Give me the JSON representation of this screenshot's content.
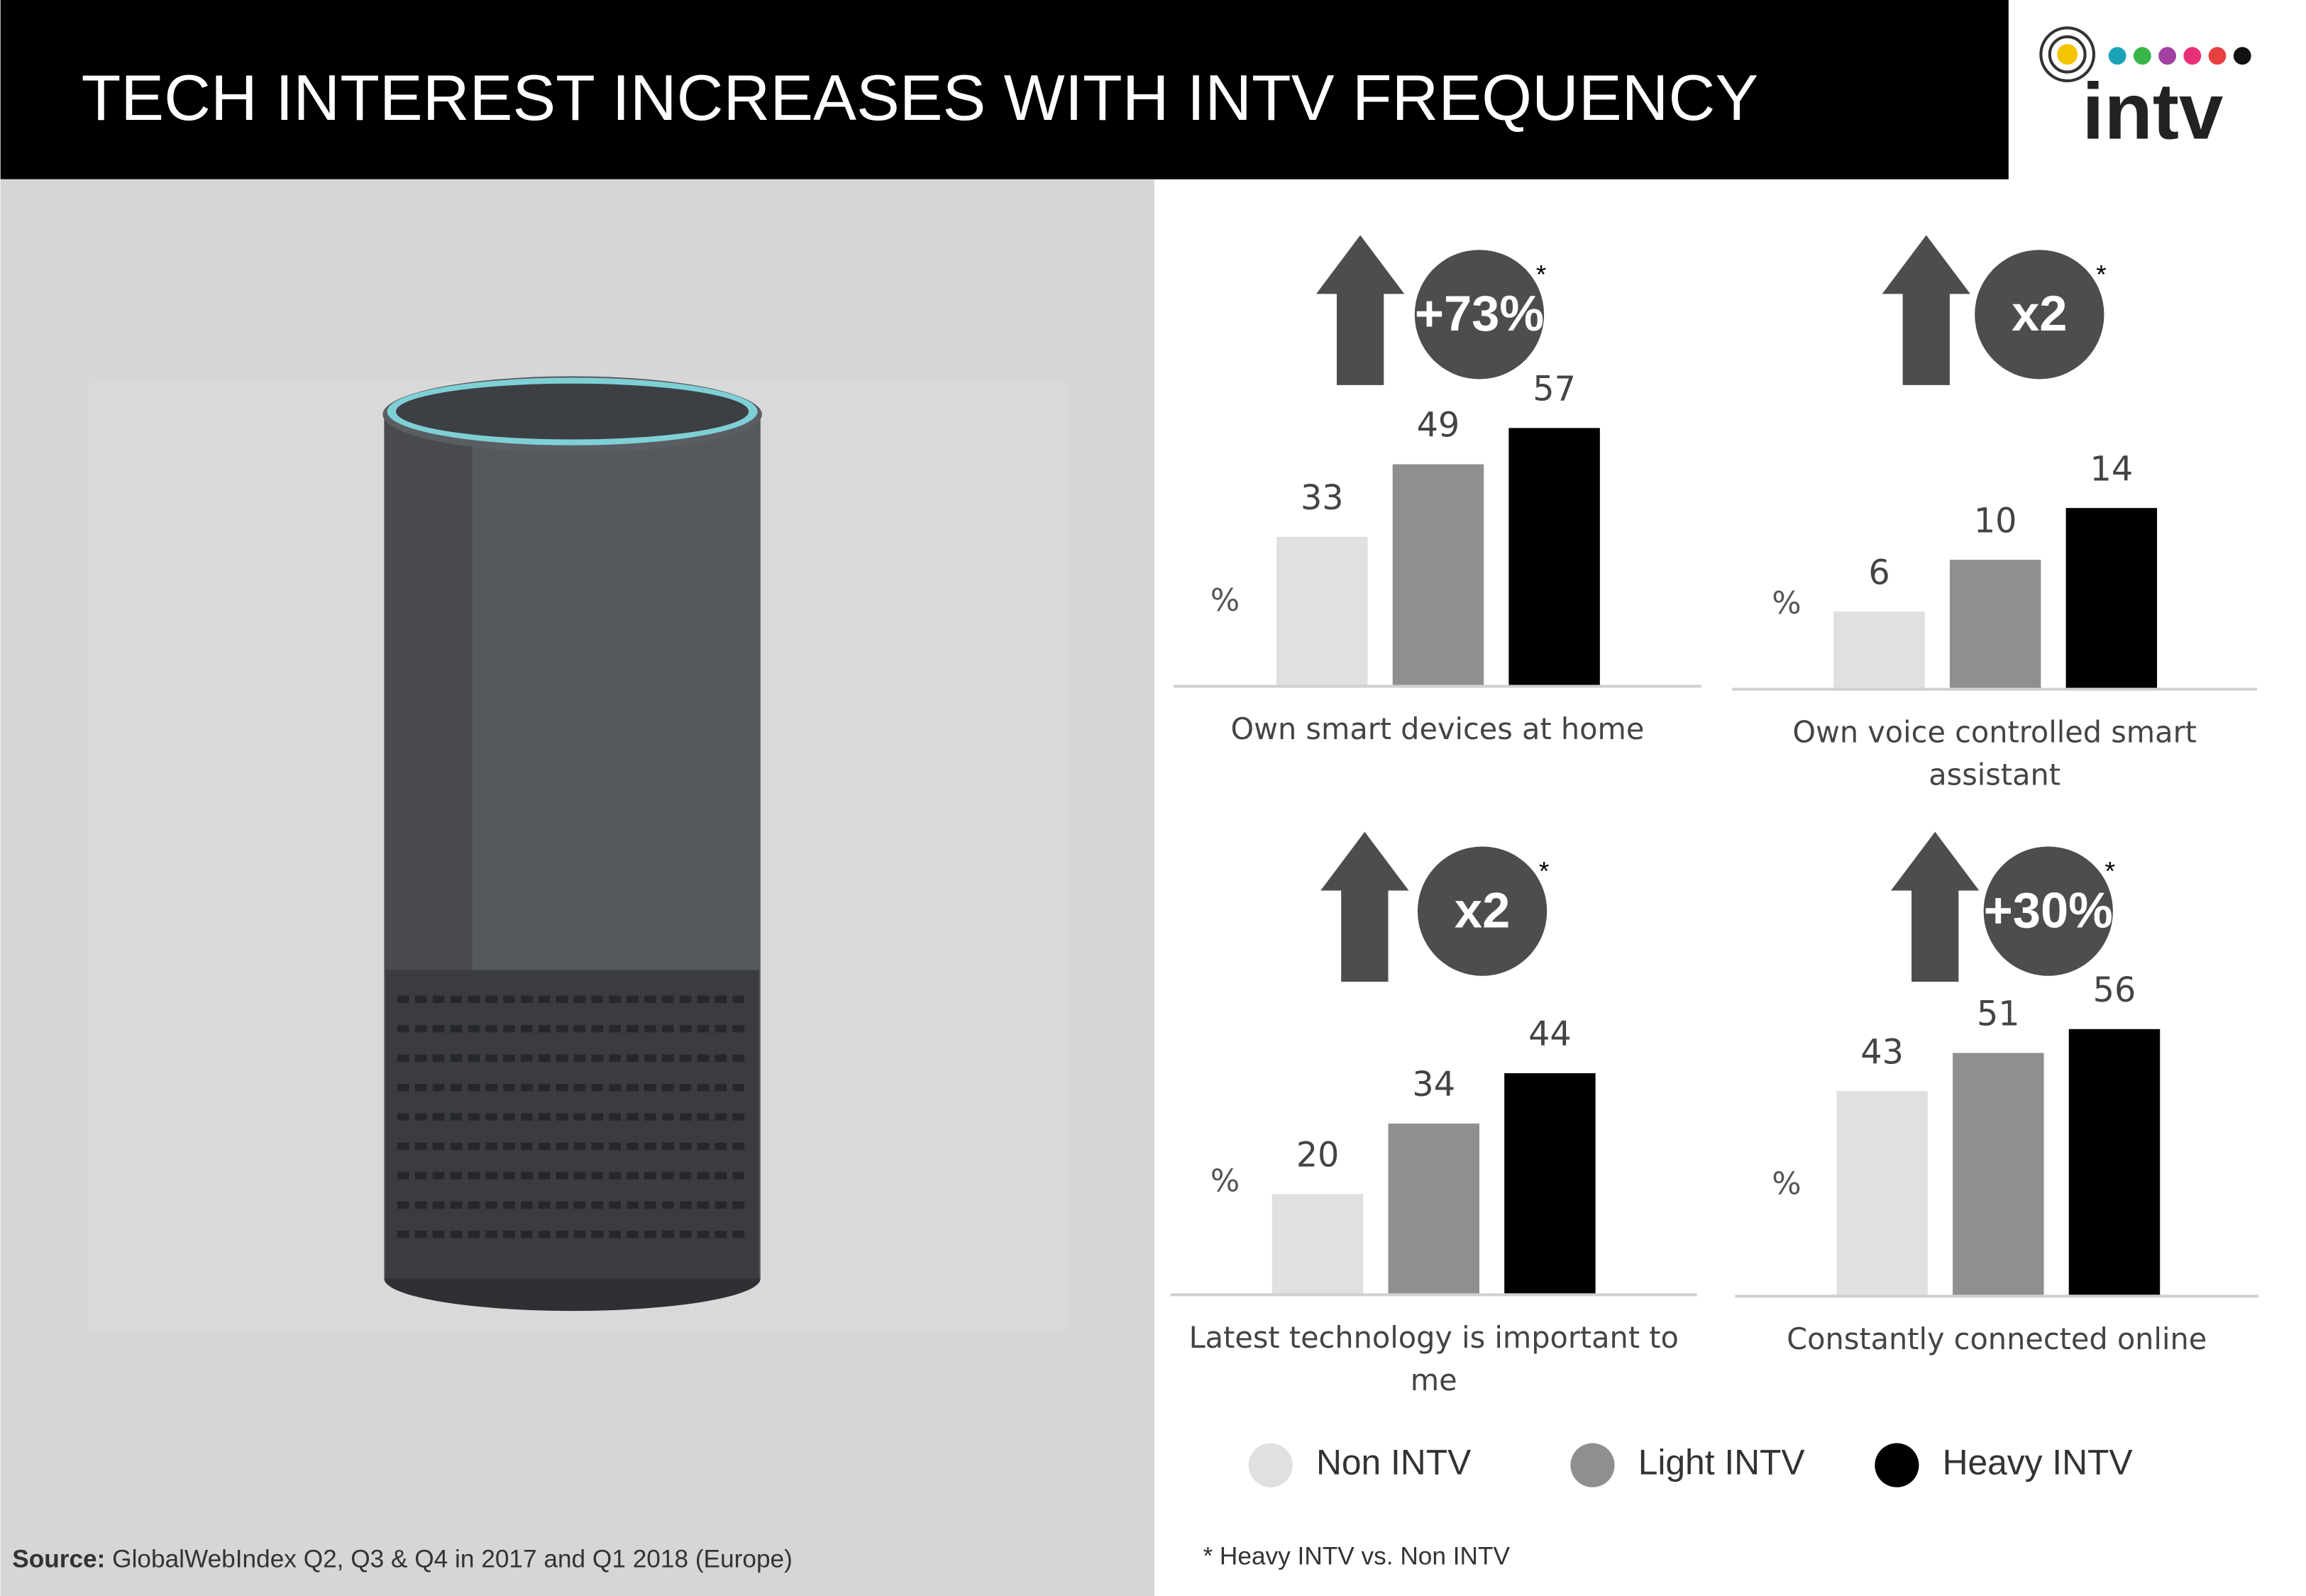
{
  "header": {
    "title": "TECH INTEREST INCREASES WITH INTV FREQUENCY",
    "logo": "intv"
  },
  "chart_data": [
    {
      "type": "bar",
      "categories": [
        "Own smart devices at home"
      ],
      "unit": "%",
      "badge": "+73%",
      "badge_mark": "*",
      "ylim": [
        0,
        60
      ],
      "series": [
        {
          "name": "Non INTV",
          "color": "#e0e0e0",
          "values": [
            33
          ]
        },
        {
          "name": "Light INTV",
          "color": "#8f8f8f",
          "values": [
            49
          ]
        },
        {
          "name": "Heavy INTV",
          "color": "#000000",
          "values": [
            57
          ]
        }
      ]
    },
    {
      "type": "bar",
      "categories": [
        "Own voice controlled smart assistant"
      ],
      "unit": "%",
      "badge": "x2",
      "badge_mark": "*",
      "ylim": [
        0,
        21
      ],
      "series": [
        {
          "name": "Non INTV",
          "color": "#e0e0e0",
          "values": [
            6
          ]
        },
        {
          "name": "Light INTV",
          "color": "#8f8f8f",
          "values": [
            10
          ]
        },
        {
          "name": "Heavy INTV",
          "color": "#000000",
          "values": [
            14
          ]
        }
      ]
    },
    {
      "type": "bar",
      "categories": [
        "Latest technology is important to me"
      ],
      "unit": "%",
      "badge": "x2",
      "badge_mark": "*",
      "ylim": [
        0,
        54
      ],
      "series": [
        {
          "name": "Non INTV",
          "color": "#e0e0e0",
          "values": [
            20
          ]
        },
        {
          "name": "Light INTV",
          "color": "#8f8f8f",
          "values": [
            34
          ]
        },
        {
          "name": "Heavy INTV",
          "color": "#000000",
          "values": [
            44
          ]
        }
      ]
    },
    {
      "type": "bar",
      "categories": [
        "Constantly connected online"
      ],
      "unit": "%",
      "badge": "+30%",
      "badge_mark": "*",
      "ylim": [
        0,
        57
      ],
      "series": [
        {
          "name": "Non INTV",
          "color": "#e0e0e0",
          "values": [
            43
          ]
        },
        {
          "name": "Light INTV",
          "color": "#8f8f8f",
          "values": [
            51
          ]
        },
        {
          "name": "Heavy INTV",
          "color": "#000000",
          "values": [
            56
          ]
        }
      ]
    }
  ],
  "footnote": "* Heavy INTV vs. Non INTV",
  "source": {
    "label": "Source:",
    "text": "GlobalWebIndex Q2, Q3 & Q4 in 2017 and Q1 2018 (Europe)"
  }
}
